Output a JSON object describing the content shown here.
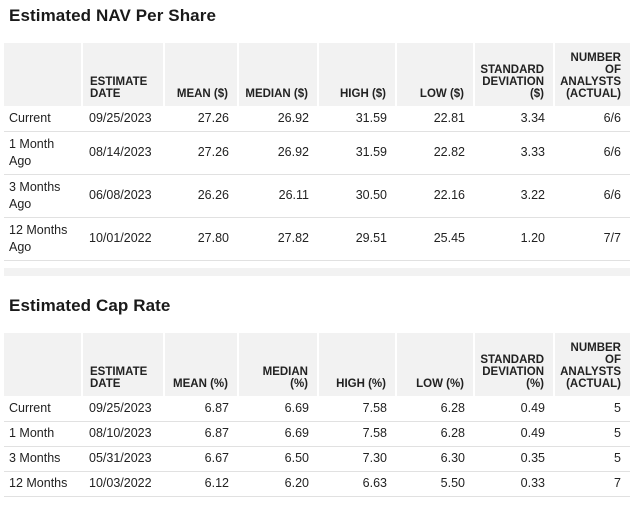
{
  "nav": {
    "title": "Estimated NAV Per Share",
    "headers": [
      "",
      "ESTIMATE DATE",
      "MEAN ($)",
      "MEDIAN ($)",
      "HIGH ($)",
      "LOW ($)",
      "STANDARD DEVIATION ($)",
      "NUMBER OF ANALYSTS (ACTUAL)"
    ],
    "rows": [
      [
        "Current",
        "09/25/2023",
        "27.26",
        "26.92",
        "31.59",
        "22.81",
        "3.34",
        "6/6"
      ],
      [
        "1 Month Ago",
        "08/14/2023",
        "27.26",
        "26.92",
        "31.59",
        "22.82",
        "3.33",
        "6/6"
      ],
      [
        "3 Months Ago",
        "06/08/2023",
        "26.26",
        "26.11",
        "30.50",
        "22.16",
        "3.22",
        "6/6"
      ],
      [
        "12 Months Ago",
        "10/01/2022",
        "27.80",
        "27.82",
        "29.51",
        "25.45",
        "1.20",
        "7/7"
      ]
    ]
  },
  "cap": {
    "title": "Estimated Cap Rate",
    "headers": [
      "",
      "ESTIMATE DATE",
      "MEAN (%)",
      "MEDIAN (%)",
      "HIGH (%)",
      "LOW (%)",
      "STANDARD DEVIATION (%)",
      "NUMBER OF ANALYSTS (ACTUAL)"
    ],
    "rows": [
      [
        "Current",
        "09/25/2023",
        "6.87",
        "6.69",
        "7.58",
        "6.28",
        "0.49",
        "5"
      ],
      [
        "1 Month",
        "08/10/2023",
        "6.87",
        "6.69",
        "7.58",
        "6.28",
        "0.49",
        "5"
      ],
      [
        "3 Months",
        "05/31/2023",
        "6.67",
        "6.50",
        "7.30",
        "6.30",
        "0.35",
        "5"
      ],
      [
        "12 Months",
        "10/03/2022",
        "6.12",
        "6.20",
        "6.63",
        "5.50",
        "0.33",
        "7"
      ]
    ]
  }
}
